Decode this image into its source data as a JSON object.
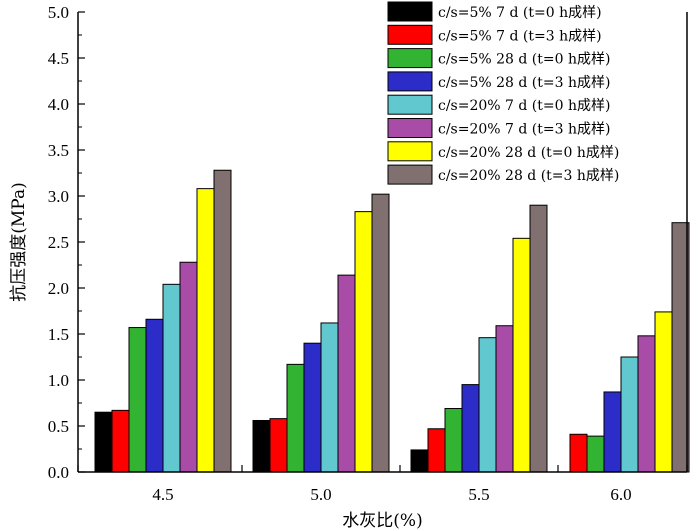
{
  "chart_data": {
    "type": "bar",
    "xlabel": "水灰比(%)",
    "ylabel": "抗压强度(MPa)",
    "ylim": [
      0,
      5.0
    ],
    "yticks": [
      "0.0",
      "0.5",
      "1.0",
      "1.5",
      "2.0",
      "2.5",
      "3.0",
      "3.5",
      "4.0",
      "4.5",
      "5.0"
    ],
    "categories": [
      "4.5",
      "5.0",
      "5.5",
      "6.0"
    ],
    "legend_position": "top-right",
    "grid": false,
    "series": [
      {
        "name": "c/s=5% 7 d (t=0 h成样)",
        "color": "#000000",
        "values": [
          0.65,
          0.56,
          0.24,
          0.0
        ]
      },
      {
        "name": "c/s=5% 7 d (t=3 h成样)",
        "color": "#ff0000",
        "values": [
          0.67,
          0.58,
          0.47,
          0.41
        ]
      },
      {
        "name": "c/s=5% 28 d (t=0 h成样)",
        "color": "#32b432",
        "values": [
          1.57,
          1.17,
          0.69,
          0.39
        ]
      },
      {
        "name": "c/s=5% 28 d (t=3 h成样)",
        "color": "#2c2cc8",
        "values": [
          1.66,
          1.4,
          0.95,
          0.87
        ]
      },
      {
        "name": "c/s=20% 7 d (t=0 h成样)",
        "color": "#62c8cf",
        "values": [
          2.04,
          1.62,
          1.46,
          1.25
        ]
      },
      {
        "name": "c/s=20% 7 d (t=3 h成样)",
        "color": "#a84ca8",
        "values": [
          2.28,
          2.14,
          1.59,
          1.48
        ]
      },
      {
        "name": "c/s=20% 28 d (t=0 h成样)",
        "color": "#ffff00",
        "values": [
          3.08,
          2.83,
          2.54,
          1.74
        ]
      },
      {
        "name": "c/s=20% 28 d (t=3 h成样)",
        "color": "#807070",
        "values": [
          3.28,
          3.02,
          2.9,
          2.71
        ]
      }
    ]
  }
}
